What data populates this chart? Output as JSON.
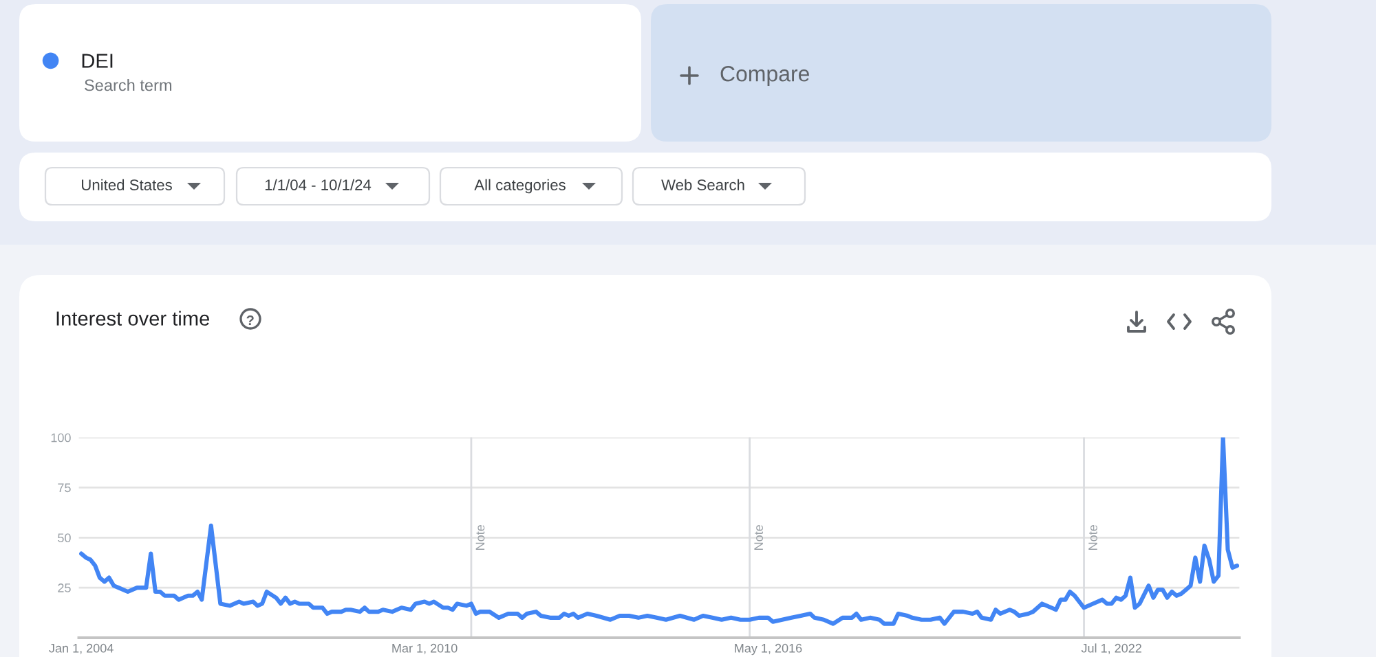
{
  "chart_data": {
    "type": "line",
    "title": "Interest over time",
    "x": [
      "2004-01",
      "2004-02",
      "2004-03",
      "2004-04",
      "2004-05",
      "2004-06",
      "2004-07",
      "2004-08",
      "2004-09",
      "2004-11",
      "2005-01",
      "2005-03",
      "2005-04",
      "2005-05",
      "2005-06",
      "2005-07",
      "2005-09",
      "2005-10",
      "2005-12",
      "2006-01",
      "2006-02",
      "2006-03",
      "2006-05",
      "2006-07",
      "2006-09",
      "2006-11",
      "2006-12",
      "2007-02",
      "2007-03",
      "2007-04",
      "2007-05",
      "2007-07",
      "2007-08",
      "2007-09",
      "2007-10",
      "2007-11",
      "2007-12",
      "2008-02",
      "2008-03",
      "2008-05",
      "2008-06",
      "2008-07",
      "2008-09",
      "2008-10",
      "2008-11",
      "2009-01",
      "2009-02",
      "2009-03",
      "2009-05",
      "2009-06",
      "2009-08",
      "2009-10",
      "2009-12",
      "2010-01",
      "2010-03",
      "2010-04",
      "2010-05",
      "2010-07",
      "2010-08",
      "2010-09",
      "2010-10",
      "2010-12",
      "2011-01",
      "2011-02",
      "2011-03",
      "2011-05",
      "2011-07",
      "2011-09",
      "2011-11",
      "2011-12",
      "2012-01",
      "2012-03",
      "2012-04",
      "2012-06",
      "2012-08",
      "2012-09",
      "2012-10",
      "2012-11",
      "2012-12",
      "2013-02",
      "2013-04",
      "2013-07",
      "2013-09",
      "2013-11",
      "2014-01",
      "2014-03",
      "2014-05",
      "2014-07",
      "2014-10",
      "2015-01",
      "2015-03",
      "2015-05",
      "2015-07",
      "2015-09",
      "2015-11",
      "2016-01",
      "2016-03",
      "2016-05",
      "2016-06",
      "2016-08",
      "2016-10",
      "2016-12",
      "2017-02",
      "2017-03",
      "2017-05",
      "2017-07",
      "2017-09",
      "2017-11",
      "2017-12",
      "2018-01",
      "2018-03",
      "2018-05",
      "2018-06",
      "2018-08",
      "2018-09",
      "2018-11",
      "2018-12",
      "2019-02",
      "2019-04",
      "2019-06",
      "2019-07",
      "2019-09",
      "2019-11",
      "2020-01",
      "2020-02",
      "2020-03",
      "2020-05",
      "2020-06",
      "2020-07",
      "2020-09",
      "2020-10",
      "2020-11",
      "2021-01",
      "2021-02",
      "2021-04",
      "2021-06",
      "2021-07",
      "2021-08",
      "2021-09",
      "2021-10",
      "2021-11",
      "2022-01",
      "2022-03",
      "2022-05",
      "2022-06",
      "2022-07",
      "2022-08",
      "2022-09",
      "2022-10",
      "2022-11",
      "2022-12",
      "2023-01",
      "2023-03",
      "2023-04",
      "2023-05",
      "2023-06",
      "2023-07",
      "2023-08",
      "2023-09",
      "2023-10",
      "2023-11",
      "2023-12",
      "2024-01",
      "2024-02",
      "2024-03",
      "2024-04",
      "2024-05",
      "2024-06",
      "2024-07",
      "2024-08",
      "2024-09",
      "2024-10"
    ],
    "series": [
      {
        "name": "DEI",
        "color": "#4285f4",
        "values": [
          42,
          40,
          39,
          36,
          30,
          28,
          30,
          26,
          25,
          23,
          25,
          25,
          42,
          23,
          23,
          21,
          21,
          19,
          21,
          21,
          23,
          19,
          56,
          17,
          16,
          18,
          17,
          18,
          16,
          17,
          23,
          20,
          17,
          20,
          17,
          18,
          17,
          17,
          15,
          15,
          12,
          13,
          13,
          14,
          14,
          13,
          15,
          13,
          13,
          14,
          13,
          15,
          14,
          17,
          18,
          17,
          18,
          15,
          15,
          14,
          17,
          16,
          17,
          12,
          13,
          13,
          10,
          12,
          12,
          10,
          12,
          13,
          11,
          10,
          10,
          12,
          11,
          12,
          10,
          12,
          11,
          9,
          11,
          11,
          10,
          11,
          10,
          9,
          11,
          9,
          11,
          10,
          9,
          10,
          9,
          9,
          10,
          10,
          8,
          9,
          10,
          11,
          12,
          10,
          9,
          7,
          10,
          10,
          12,
          9,
          10,
          9,
          7,
          7,
          12,
          11,
          10,
          9,
          9,
          10,
          7,
          13,
          13,
          12,
          13,
          10,
          9,
          14,
          12,
          14,
          13,
          11,
          12,
          13,
          17,
          15,
          14,
          19,
          19,
          23,
          21,
          15,
          17,
          19,
          17,
          17,
          20,
          19,
          21,
          30,
          15,
          17,
          26,
          20,
          24,
          24,
          20,
          23,
          21,
          22,
          24,
          26,
          40,
          28,
          46,
          39,
          28,
          31,
          100,
          44,
          35,
          36
        ]
      }
    ],
    "xlim": [
      "2003-12-16",
      "2024-10-16"
    ],
    "xticks": [
      {
        "value": "2004-01-01",
        "label": "Jan 1, 2004"
      },
      {
        "value": "2010-03-01",
        "label": "Mar 1, 2010"
      },
      {
        "value": "2016-05-01",
        "label": "May 1, 2016"
      },
      {
        "value": "2022-07-01",
        "label": "Jul 1, 2022"
      }
    ],
    "ylim": [
      0,
      100
    ],
    "yticks": [
      25,
      50,
      75,
      100
    ],
    "grid": "y",
    "legend": "top left",
    "ref_lines": [
      {
        "axis": "x",
        "value": "2011-01-01",
        "label": "Note",
        "color": "#dadce0"
      },
      {
        "axis": "x",
        "value": "2016-01-01",
        "label": "Note",
        "color": "#dadce0"
      },
      {
        "axis": "x",
        "value": "2022-01-01",
        "label": "Note",
        "color": "#dadce0"
      }
    ],
    "annotations": [
      "Search term",
      "Compare",
      "United States",
      "1/1/04 - 10/1/24",
      "All categories",
      "Web Search"
    ]
  }
}
